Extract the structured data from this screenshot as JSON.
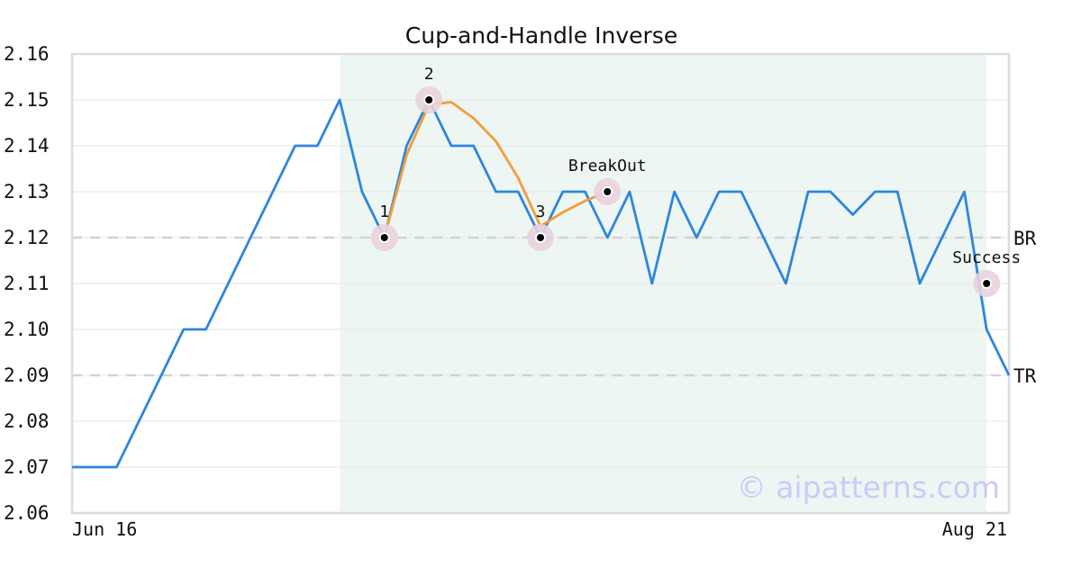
{
  "chart_data": {
    "type": "line",
    "title": "Cup-and-Handle Inverse",
    "watermark": "© aipatterns.com",
    "x_start_label": "Jun 16",
    "x_end_label": "Aug 21",
    "ylim": [
      2.06,
      2.16
    ],
    "y_ticks": [
      "2.06",
      "2.07",
      "2.08",
      "2.09",
      "2.10",
      "2.11",
      "2.12",
      "2.13",
      "2.14",
      "2.15",
      "2.16"
    ],
    "grid": true,
    "x_range_days": [
      0,
      42
    ],
    "highlight_range_days": [
      12,
      41
    ],
    "series": [
      {
        "color": "#2e86de",
        "points": [
          [
            0,
            2.07
          ],
          [
            2,
            2.07
          ],
          [
            5,
            2.1
          ],
          [
            6,
            2.1
          ],
          [
            10,
            2.14
          ],
          [
            11,
            2.14
          ],
          [
            12,
            2.15
          ],
          [
            13,
            2.13
          ],
          [
            14,
            2.12
          ],
          [
            15,
            2.14
          ],
          [
            16,
            2.15
          ],
          [
            17,
            2.14
          ],
          [
            18,
            2.14
          ],
          [
            19,
            2.13
          ],
          [
            20,
            2.13
          ],
          [
            21,
            2.12
          ],
          [
            22,
            2.13
          ],
          [
            23,
            2.13
          ],
          [
            24,
            2.12
          ],
          [
            25,
            2.13
          ],
          [
            26,
            2.11
          ],
          [
            27,
            2.13
          ],
          [
            28,
            2.12
          ],
          [
            29,
            2.13
          ],
          [
            30,
            2.13
          ],
          [
            32,
            2.11
          ],
          [
            33,
            2.13
          ],
          [
            34,
            2.13
          ],
          [
            35,
            2.125
          ],
          [
            36,
            2.13
          ],
          [
            37,
            2.13
          ],
          [
            38,
            2.11
          ],
          [
            40,
            2.13
          ],
          [
            41,
            2.1
          ],
          [
            42,
            2.09
          ]
        ]
      },
      {
        "color": "#f39c3c",
        "points": [
          [
            14,
            2.12
          ],
          [
            15,
            2.138
          ],
          [
            16,
            2.149
          ],
          [
            17,
            2.1495
          ],
          [
            18,
            2.146
          ],
          [
            19,
            2.141
          ],
          [
            20,
            2.133
          ],
          [
            21,
            2.1225
          ],
          [
            22,
            2.1255
          ],
          [
            23,
            2.128
          ],
          [
            24,
            2.13
          ]
        ]
      }
    ],
    "reference_lines": [
      {
        "label": "BR",
        "y": 2.12
      },
      {
        "label": "TR",
        "y": 2.09
      }
    ],
    "markers": [
      {
        "label": "1",
        "x": 14,
        "y": 2.12
      },
      {
        "label": "2",
        "x": 16,
        "y": 2.15
      },
      {
        "label": "3",
        "x": 21,
        "y": 2.12
      },
      {
        "label": "BreakOut",
        "x": 24,
        "y": 2.13
      },
      {
        "label": "Success",
        "x": 41,
        "y": 2.11
      }
    ]
  }
}
